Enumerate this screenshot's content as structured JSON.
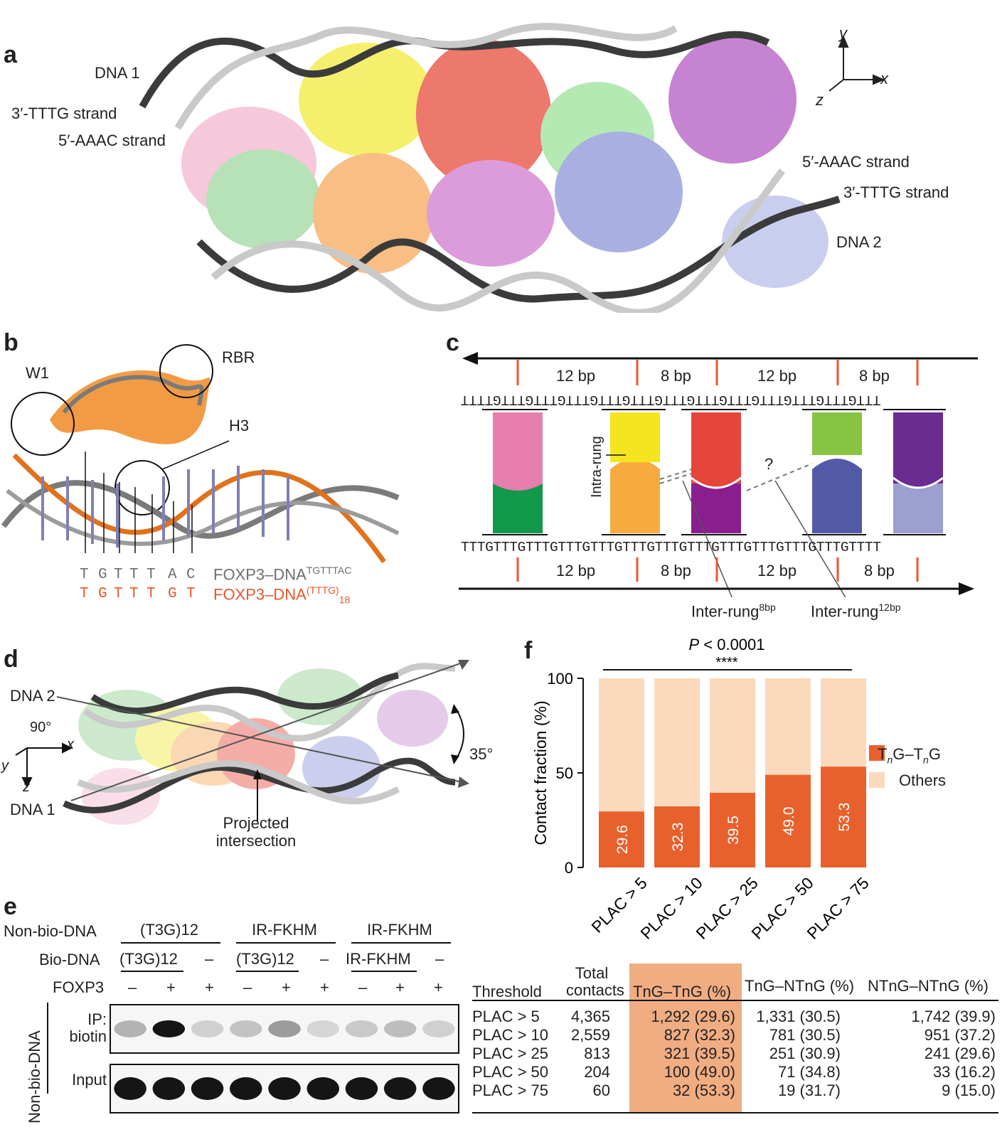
{
  "panel_labels": {
    "a": "a",
    "b": "b",
    "c": "c",
    "d": "d",
    "e": "e",
    "f": "f"
  },
  "panel_a": {
    "dna1_label": "DNA 1",
    "dna2_label": "DNA 2",
    "tttg_strand_left": "3′-TTTG strand",
    "aaac_strand_left": "5′-AAAC strand",
    "aaac_strand_right": "5′-AAAC strand",
    "tttg_strand_right": "3′-TTTG strand",
    "axis_y": "y",
    "axis_x": "x",
    "axis_z": "z",
    "colors": {
      "pink": "#f2b7cf",
      "green": "#3fae49",
      "yellow": "#f3ea3c",
      "orange": "#f28a1e",
      "red": "#e3221f",
      "magenta": "#b93ab3",
      "blue": "#5563b6",
      "purple": "#8b2b9b",
      "lightblue": "#aab0e0",
      "dna_dark": "#3b3b3b",
      "dna_light": "#c9c9c9"
    }
  },
  "panel_b": {
    "w1": "W1",
    "rbr": "RBR",
    "h3": "H3",
    "seq_grey": [
      "T",
      "G",
      "T",
      "T",
      "T",
      "A",
      "C"
    ],
    "seq_orange": [
      "T",
      "G",
      "T",
      "T",
      "T",
      "G",
      "T"
    ],
    "legend_grey": "FOXP3–DNA",
    "legend_grey_sup": "TGTTTAC",
    "legend_orange": "FOXP3–DNA",
    "legend_orange_sup": "(TTTG)",
    "legend_orange_sub": "18"
  },
  "panel_c": {
    "top_bp": [
      "12 bp",
      "8 bp",
      "12 bp",
      "8 bp"
    ],
    "bottom_bp": [
      "12 bp",
      "8 bp",
      "12 bp",
      "8 bp"
    ],
    "top_seq": "TTTGTTTGTTTGTTTGTTTGTTTGTTTGTTTGTTTGTTTGTTTGTTTGTTTT",
    "bottom_seq": "TTTGTTTGTTTGTTTGTTTGTTTGTTTGTTTGTTTGTTTGTTTGTTTGTTTT",
    "intra_rung": "Intra-rung",
    "question": "?",
    "inter_8": "Inter-rung",
    "inter_8_sup": "8bp",
    "inter_12": "Inter-rung",
    "inter_12_sup": "12bp",
    "block_colors": [
      {
        "top": "#e67fae",
        "bottom": "#11984b"
      },
      {
        "top": "#f5e51e",
        "bottom": "#f7ab3f"
      },
      {
        "top": "#e6453b",
        "bottom": "#8a1e8e"
      },
      {
        "top": "#86c441",
        "bottom": "#5259a7"
      },
      {
        "top": "#6a2c91",
        "bottom": "#9c9fd0"
      }
    ]
  },
  "panel_d": {
    "dna2": "DNA 2",
    "dna1": "DNA 1",
    "rot": "90°",
    "axis_x": "x",
    "axis_y": "y",
    "axis_z": "z",
    "angle": "35°",
    "projected": "Projected",
    "intersection": "intersection"
  },
  "panel_e": {
    "non_bio_label": "Non-bio-DNA",
    "bio_label": "Bio-DNA",
    "foxp3_label": "FOXP3",
    "groups": [
      "(T3G)12",
      "IR-FKHM",
      "IR-FKHM"
    ],
    "bio": [
      "(T3G)12",
      "–",
      "(T3G)12",
      "–",
      "IR-FKHM",
      "–"
    ],
    "foxp3": [
      "–",
      "+",
      "+",
      "–",
      "+",
      "+",
      "–",
      "+",
      "+"
    ],
    "ip_label_1": "IP:",
    "ip_label_2": "biotin",
    "input_label": "Input",
    "side_label": "Non-bio-DNA",
    "ip_band_intensity": [
      0.25,
      0.95,
      0.12,
      0.18,
      0.35,
      0.1,
      0.15,
      0.2,
      0.12
    ],
    "input_band_intensity": [
      0.95,
      0.95,
      0.95,
      0.95,
      0.95,
      0.95,
      0.95,
      0.95,
      0.95
    ]
  },
  "panel_f": {
    "p_text": "P",
    "p_rest": " < 0.0001",
    "stars": "****",
    "legend": [
      {
        "label": "T",
        "label_full": "TnG–TnG",
        "color": "#e8612c"
      },
      {
        "label": "Others",
        "color": "#fbd9bd"
      }
    ],
    "legend_tng": "T",
    "legend_n": "n",
    "legend_g": "G–T",
    "legend_g2": "G",
    "legend_others": "Others"
  },
  "chart_data": {
    "type": "bar",
    "stacked": true,
    "categories": [
      "PLAC > 5",
      "PLAC > 10",
      "PLAC > 25",
      "PLAC > 50",
      "PLAC > 75"
    ],
    "series": [
      {
        "name": "TnG–TnG",
        "values": [
          29.6,
          32.3,
          39.5,
          49.0,
          53.3
        ],
        "color": "#e8612c"
      },
      {
        "name": "Others",
        "values": [
          70.4,
          67.7,
          60.5,
          51.0,
          46.7
        ],
        "color": "#fbd9bd"
      }
    ],
    "data_labels": [
      "29.6",
      "32.3",
      "39.5",
      "49.0",
      "53.3"
    ],
    "ylabel": "Contact fraction (%)",
    "ylim": [
      0,
      100
    ],
    "yticks": [
      "0",
      "50",
      "100"
    ],
    "legend_position": "right"
  },
  "table": {
    "headers": [
      "Threshold",
      "Total\ncontacts",
      "TnG–TnG (%)",
      "TnG–NTnG (%)",
      "NTnG–NTnG (%)"
    ],
    "h_total_1": "Total",
    "h_total_2": "contacts",
    "rows": [
      [
        "PLAC > 5",
        "4,365",
        "1,292 (29.6)",
        "1,331 (30.5)",
        "1,742 (39.9)"
      ],
      [
        "PLAC > 10",
        "2,559",
        "827 (32.3)",
        "781 (30.5)",
        "951 (37.2)"
      ],
      [
        "PLAC > 25",
        "813",
        "321 (39.5)",
        "251 (30.9)",
        "241 (29.6)"
      ],
      [
        "PLAC > 50",
        "204",
        "100 (49.0)",
        "71 (34.8)",
        "33 (16.2)"
      ],
      [
        "PLAC > 75",
        "60",
        "32 (53.3)",
        "19 (31.7)",
        "9 (15.0)"
      ]
    ],
    "highlight_color": "#f0ad82"
  }
}
